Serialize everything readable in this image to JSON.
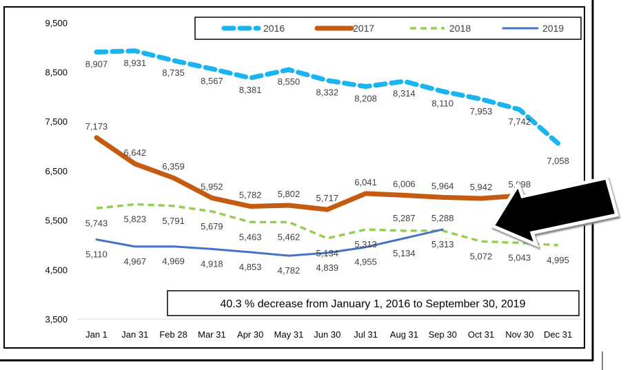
{
  "chart_data": {
    "type": "line",
    "categories": [
      "Jan 1",
      "Jan 31",
      "Feb 28",
      "Mar 31",
      "Apr 30",
      "May 31",
      "Jun 30",
      "Jul 31",
      "Aug 31",
      "Sep 30",
      "Oct 31",
      "Nov 30",
      "Dec 31"
    ],
    "y_ticks": [
      "3,500",
      "4,500",
      "5,500",
      "6,500",
      "7,500",
      "8,500",
      "9,500"
    ],
    "ylim": [
      3500,
      9500
    ],
    "grid": false,
    "legend_position": "top-right",
    "series": [
      {
        "name": "2016",
        "color": "#1ab4ee",
        "style": "long-dash",
        "values": [
          8907,
          8931,
          8735,
          8567,
          8381,
          8550,
          8332,
          8208,
          8314,
          8110,
          7953,
          7742,
          7058
        ]
      },
      {
        "name": "2017",
        "color": "#c55a11",
        "style": "solid-thick",
        "values": [
          7173,
          6642,
          6359,
          5952,
          5782,
          5802,
          5717,
          6041,
          6006,
          5964,
          5942,
          5998,
          null
        ]
      },
      {
        "name": "2018",
        "color": "#92d050",
        "style": "dash",
        "values": [
          5743,
          5823,
          5791,
          5679,
          5463,
          5462,
          5134,
          5313,
          5287,
          5288,
          5072,
          5043,
          4995
        ]
      },
      {
        "name": "2019",
        "color": "#4472c4",
        "style": "solid",
        "values": [
          5110,
          4967,
          4969,
          4918,
          4853,
          4782,
          4839,
          4955,
          5134,
          5313,
          null,
          null,
          null
        ]
      }
    ],
    "annotation": "40.3 % decrease from January  1, 2016 to September 30, 2019"
  }
}
